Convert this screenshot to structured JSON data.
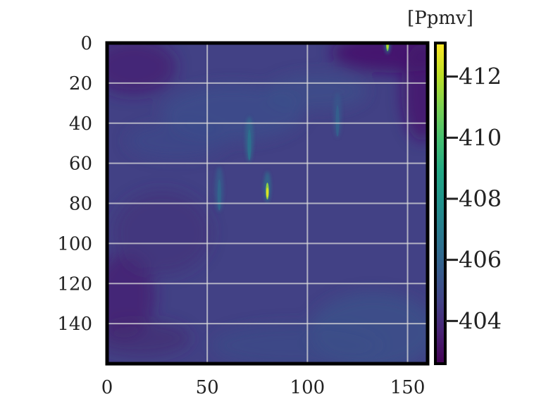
{
  "chart_data": {
    "type": "heatmap",
    "title": "",
    "xlabel": "",
    "ylabel": "",
    "colorbar_label": "[Ppmv]",
    "colormap": "viridis",
    "x_range": [
      0,
      160
    ],
    "y_range": [
      0,
      160
    ],
    "y_inverted": true,
    "x_ticks": [
      0,
      50,
      100,
      150
    ],
    "x_tick_labels": [
      "0",
      "50",
      "100",
      "150"
    ],
    "y_ticks": [
      0,
      20,
      40,
      60,
      80,
      100,
      120,
      140
    ],
    "y_tick_labels": [
      "0",
      "20",
      "40",
      "60",
      "80",
      "100",
      "120",
      "140"
    ],
    "colorbar_range": [
      402.6,
      413.1
    ],
    "colorbar_ticks": [
      404,
      406,
      408,
      410,
      412
    ],
    "colorbar_tick_labels": [
      "404",
      "406",
      "408",
      "410",
      "412"
    ],
    "grid": true,
    "background_value": 404.6,
    "features": [
      {
        "x": 140,
        "y": 2,
        "value": 412.0
      },
      {
        "x": 80,
        "y": 76,
        "value": 412.6
      },
      {
        "x": 71,
        "y": 55,
        "value": 406.5
      },
      {
        "x": 56,
        "y": 80,
        "value": 406.0
      },
      {
        "x": 115,
        "y": 43,
        "value": 405.8
      }
    ]
  },
  "colors": {
    "frame": "#000000",
    "grid": "#d8d8d8",
    "text": "#222222"
  }
}
